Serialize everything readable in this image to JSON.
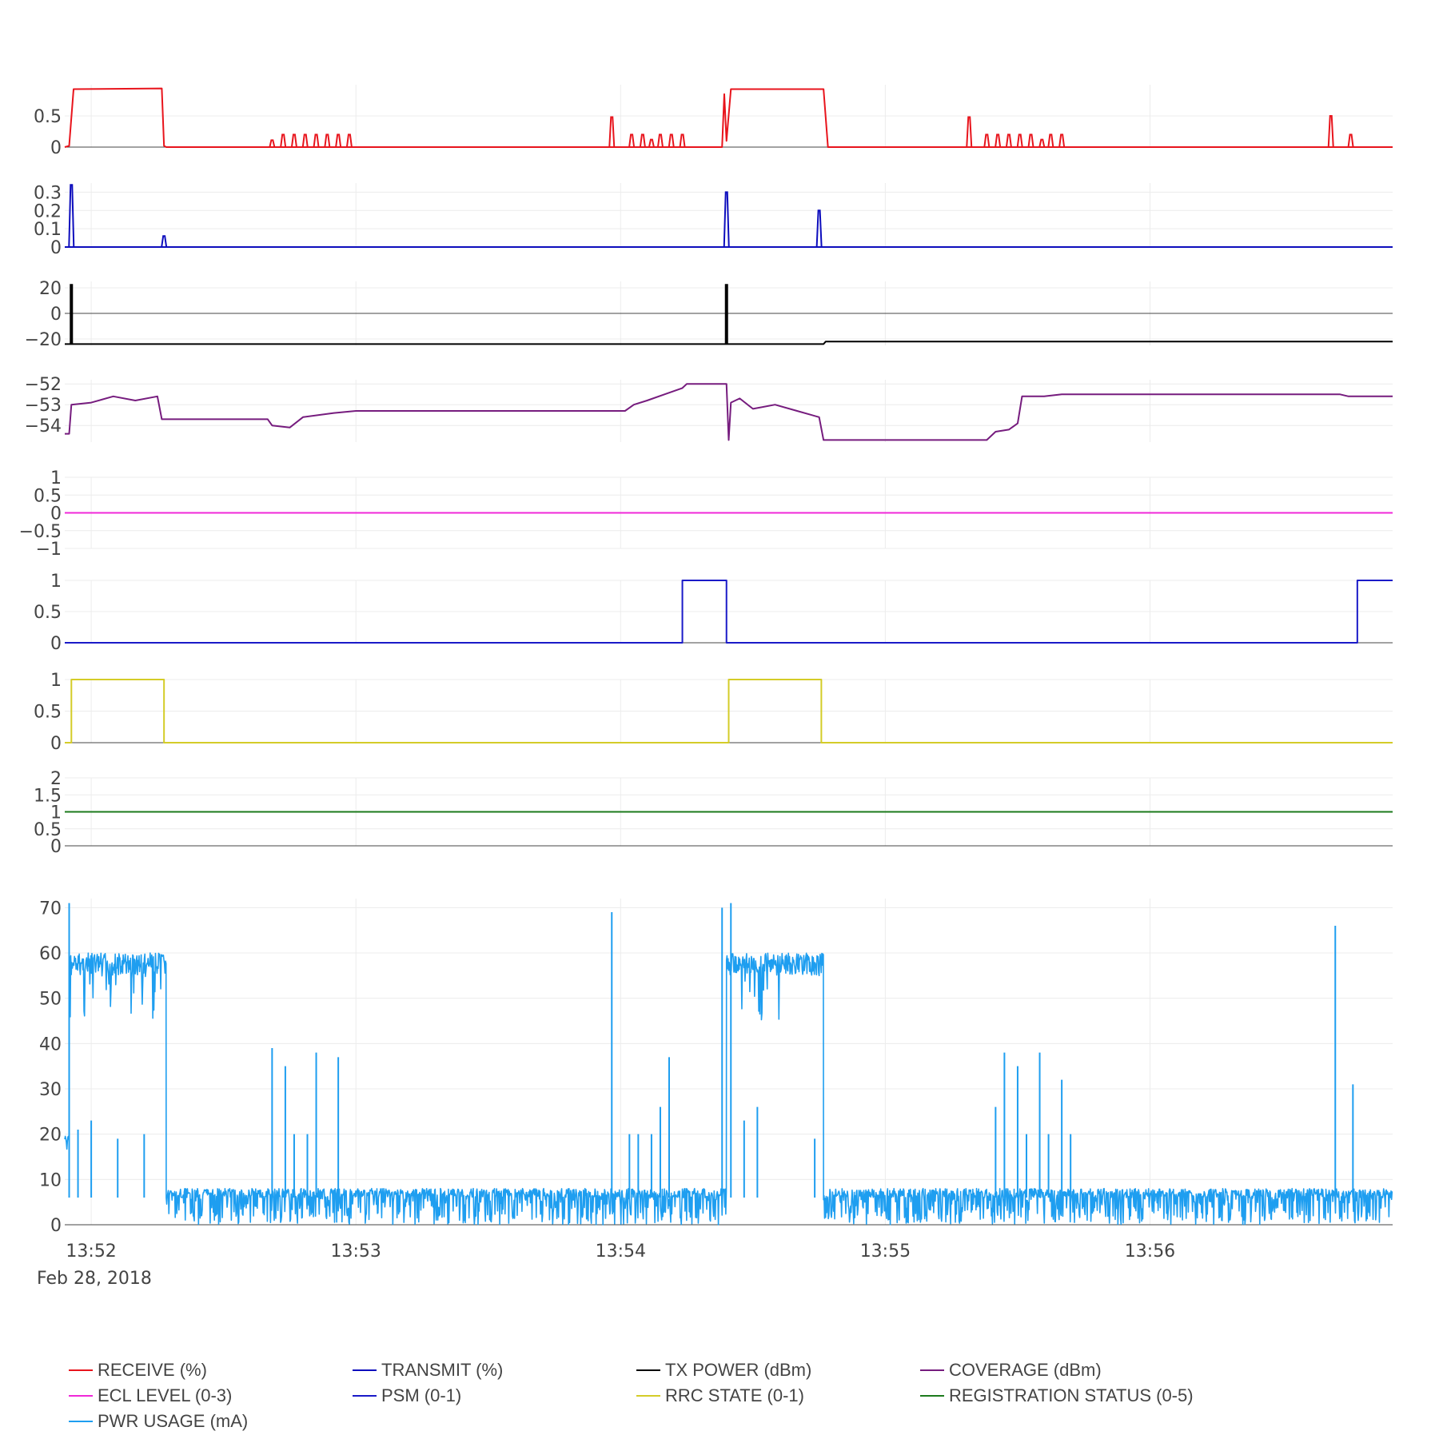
{
  "chart_data": {
    "type": "line",
    "title": "",
    "x_axis": {
      "type": "time",
      "range": [
        "2018-02-28 13:51:54",
        "2018-02-28 13:56:55"
      ],
      "tick_labels": [
        "13:52",
        "13:53",
        "13:54",
        "13:55",
        "13:56"
      ],
      "date_label": "Feb 28, 2018"
    },
    "grid": true,
    "legend_position": "bottom",
    "subplots": [
      {
        "name": "RECEIVE (%)",
        "color": "#e8141c",
        "ylim": [
          0,
          1
        ],
        "yticks": [
          "0",
          "0.5"
        ],
        "points": [
          [
            "13:51:54",
            0
          ],
          [
            "13:51:55",
            0.02
          ],
          [
            "13:51:56",
            0.93
          ],
          [
            "13:52:16",
            0.94
          ],
          [
            "13:52:16.5",
            0.02
          ],
          [
            "13:52:17",
            0
          ],
          [
            "13:54:23",
            0
          ],
          [
            "13:54:23.5",
            0.85
          ],
          [
            "13:54:24",
            0.1
          ],
          [
            "13:54:25",
            0.93
          ],
          [
            "13:54:46",
            0.93
          ],
          [
            "13:54:47",
            0
          ],
          [
            "13:56:55",
            0
          ]
        ],
        "spikes": [
          [
            "13:52:41",
            0.11
          ],
          [
            "13:52:43.5",
            0.2
          ],
          [
            "13:52:46",
            0.2
          ],
          [
            "13:52:48.5",
            0.2
          ],
          [
            "13:52:51",
            0.2
          ],
          [
            "13:52:53.5",
            0.2
          ],
          [
            "13:52:56",
            0.2
          ],
          [
            "13:52:58.5",
            0.2
          ],
          [
            "13:53:58",
            0.48
          ],
          [
            "13:54:02.5",
            0.2
          ],
          [
            "13:54:05",
            0.2
          ],
          [
            "13:54:07",
            0.12
          ],
          [
            "13:54:09",
            0.2
          ],
          [
            "13:54:11.5",
            0.2
          ],
          [
            "13:54:14",
            0.2
          ],
          [
            "13:55:19",
            0.48
          ],
          [
            "13:55:23",
            0.2
          ],
          [
            "13:55:25.5",
            0.2
          ],
          [
            "13:55:28",
            0.2
          ],
          [
            "13:55:30.5",
            0.2
          ],
          [
            "13:55:33",
            0.2
          ],
          [
            "13:55:35.5",
            0.12
          ],
          [
            "13:55:37.5",
            0.2
          ],
          [
            "13:55:40",
            0.2
          ],
          [
            "13:56:41",
            0.5
          ],
          [
            "13:56:45.5",
            0.2
          ]
        ]
      },
      {
        "name": "TRANSMIT (%)",
        "color": "#0d0dbd",
        "ylim": [
          0,
          0.35
        ],
        "yticks": [
          "0",
          "0.1",
          "0.2",
          "0.3"
        ],
        "points": [
          [
            "13:51:54",
            0
          ],
          [
            "13:56:55",
            0
          ]
        ],
        "spikes": [
          [
            "13:51:55.5",
            0.34
          ],
          [
            "13:52:16.5",
            0.06
          ],
          [
            "13:54:24",
            0.3
          ],
          [
            "13:54:45",
            0.2
          ]
        ]
      },
      {
        "name": "TX POWER (dBm)",
        "color": "#000000",
        "ylim": [
          -25,
          25
        ],
        "yticks": [
          "−20",
          "0",
          "20"
        ],
        "points": [
          [
            "13:51:54",
            -24
          ],
          [
            "13:54:46",
            -24
          ],
          [
            "13:54:46.5",
            -22
          ],
          [
            "13:56:55",
            -22
          ]
        ],
        "bars": [
          [
            "13:51:55.5",
            23
          ],
          [
            "13:54:24",
            23
          ]
        ]
      },
      {
        "name": "COVERAGE (dBm)",
        "color": "#761c7e",
        "ylim": [
          -54.8,
          -51.8
        ],
        "yticks": [
          "−54",
          "−53",
          "−52"
        ],
        "points": [
          [
            "13:51:54",
            -54.4
          ],
          [
            "13:51:55",
            -54.4
          ],
          [
            "13:51:55.5",
            -53
          ],
          [
            "13:52:00",
            -52.9
          ],
          [
            "13:52:05",
            -52.6
          ],
          [
            "13:52:10",
            -52.8
          ],
          [
            "13:52:15",
            -52.6
          ],
          [
            "13:52:16",
            -53.7
          ],
          [
            "13:52:40",
            -53.7
          ],
          [
            "13:52:41",
            -54
          ],
          [
            "13:52:45",
            -54.1
          ],
          [
            "13:52:48",
            -53.6
          ],
          [
            "13:52:55",
            -53.4
          ],
          [
            "13:53:00",
            -53.3
          ],
          [
            "13:54:01",
            -53.3
          ],
          [
            "13:54:03",
            -53
          ],
          [
            "13:54:06",
            -52.8
          ],
          [
            "13:54:10",
            -52.5
          ],
          [
            "13:54:14",
            -52.2
          ],
          [
            "13:54:15",
            -52
          ],
          [
            "13:54:24",
            -52
          ],
          [
            "13:54:24.5",
            -54.7
          ],
          [
            "13:54:25",
            -52.9
          ],
          [
            "13:54:27",
            -52.7
          ],
          [
            "13:54:30",
            -53.2
          ],
          [
            "13:54:35",
            -53
          ],
          [
            "13:54:40",
            -53.3
          ],
          [
            "13:54:45",
            -53.6
          ],
          [
            "13:54:46",
            -54.7
          ],
          [
            "13:55:23",
            -54.7
          ],
          [
            "13:55:25",
            -54.3
          ],
          [
            "13:55:28",
            -54.2
          ],
          [
            "13:55:30",
            -53.9
          ],
          [
            "13:55:31",
            -52.6
          ],
          [
            "13:55:36",
            -52.6
          ],
          [
            "13:55:40",
            -52.5
          ],
          [
            "13:56:43",
            -52.5
          ],
          [
            "13:56:45",
            -52.6
          ],
          [
            "13:56:55",
            -52.6
          ]
        ]
      },
      {
        "name": "ECL LEVEL (0-3)",
        "color": "#f028d8",
        "ylim": [
          -1,
          1
        ],
        "yticks": [
          "−1",
          "−0.5",
          "0",
          "0.5",
          "1"
        ],
        "points": [
          [
            "13:51:54",
            0
          ],
          [
            "13:56:55",
            0
          ]
        ]
      },
      {
        "name": "PSM (0-1)",
        "color": "#1a1ac8",
        "ylim": [
          0,
          1
        ],
        "yticks": [
          "0",
          "0.5",
          "1"
        ],
        "points": [
          [
            "13:51:54",
            0
          ],
          [
            "13:54:14",
            0
          ],
          [
            "13:54:14",
            1
          ],
          [
            "13:54:24",
            1
          ],
          [
            "13:54:24",
            0
          ],
          [
            "13:56:47",
            0
          ],
          [
            "13:56:47",
            1
          ],
          [
            "13:56:55",
            1
          ]
        ]
      },
      {
        "name": "RRC STATE (0-1)",
        "color": "#d4cc28",
        "ylim": [
          0,
          1
        ],
        "yticks": [
          "0",
          "0.5",
          "1"
        ],
        "points": [
          [
            "13:51:54",
            0
          ],
          [
            "13:51:55.5",
            0
          ],
          [
            "13:51:55.5",
            1
          ],
          [
            "13:52:16.5",
            1
          ],
          [
            "13:52:16.5",
            0
          ],
          [
            "13:54:24.5",
            0
          ],
          [
            "13:54:24.5",
            1
          ],
          [
            "13:54:45.5",
            1
          ],
          [
            "13:54:45.5",
            0
          ],
          [
            "13:56:55",
            0
          ]
        ]
      },
      {
        "name": "REGISTRATION STATUS (0-5)",
        "color": "#1c7a1c",
        "ylim": [
          0,
          2
        ],
        "yticks": [
          "0",
          "0.5",
          "1",
          "1.5",
          "2"
        ],
        "points": [
          [
            "13:51:54",
            1
          ],
          [
            "13:56:55",
            1
          ]
        ]
      },
      {
        "name": "PWR USAGE (mA)",
        "color": "#1e9ef0",
        "ylim": [
          0,
          72
        ],
        "yticks": [
          "0",
          "10",
          "20",
          "30",
          "40",
          "50",
          "60",
          "70"
        ],
        "segments": [
          {
            "from": "13:51:54",
            "to": "13:51:55",
            "low": 0,
            "high": 20
          },
          {
            "from": "13:51:55",
            "to": "13:52:17",
            "low": 45,
            "high": 60
          },
          {
            "from": "13:52:17",
            "to": "13:54:24",
            "low": 0,
            "high": 8
          },
          {
            "from": "13:54:24",
            "to": "13:54:46",
            "low": 45,
            "high": 60
          },
          {
            "from": "13:54:46",
            "to": "13:56:55",
            "low": 0,
            "high": 8
          }
        ],
        "spikes": [
          [
            "13:51:55",
            71
          ],
          [
            "13:51:57",
            21
          ],
          [
            "13:52:00",
            23
          ],
          [
            "13:52:06",
            19
          ],
          [
            "13:52:12",
            20
          ],
          [
            "13:52:41",
            39
          ],
          [
            "13:52:44",
            35
          ],
          [
            "13:52:46",
            20
          ],
          [
            "13:52:49",
            20
          ],
          [
            "13:52:51",
            38
          ],
          [
            "13:52:56",
            37
          ],
          [
            "13:53:58",
            69
          ],
          [
            "13:54:02",
            20
          ],
          [
            "13:54:04",
            20
          ],
          [
            "13:54:07",
            20
          ],
          [
            "13:54:09",
            26
          ],
          [
            "13:54:11",
            37
          ],
          [
            "13:54:23",
            70
          ],
          [
            "13:54:25",
            71
          ],
          [
            "13:54:28",
            23
          ],
          [
            "13:54:31",
            26
          ],
          [
            "13:54:44",
            19
          ],
          [
            "13:55:25",
            26
          ],
          [
            "13:55:27",
            38
          ],
          [
            "13:55:30",
            35
          ],
          [
            "13:55:32",
            20
          ],
          [
            "13:55:35",
            38
          ],
          [
            "13:55:37",
            20
          ],
          [
            "13:55:40",
            32
          ],
          [
            "13:55:42",
            20
          ],
          [
            "13:56:42",
            66
          ],
          [
            "13:56:46",
            31
          ]
        ]
      }
    ]
  },
  "legend": [
    {
      "label": "RECEIVE (%)",
      "color": "#e8141c"
    },
    {
      "label": "TRANSMIT (%)",
      "color": "#0d0dbd"
    },
    {
      "label": "TX POWER (dBm)",
      "color": "#000000"
    },
    {
      "label": "COVERAGE (dBm)",
      "color": "#761c7e"
    },
    {
      "label": "ECL LEVEL (0-3)",
      "color": "#f028d8"
    },
    {
      "label": "PSM (0-1)",
      "color": "#1a1ac8"
    },
    {
      "label": "RRC STATE (0-1)",
      "color": "#d4cc28"
    },
    {
      "label": "REGISTRATION STATUS (0-5)",
      "color": "#1c7a1c"
    },
    {
      "label": "PWR USAGE (mA)",
      "color": "#1e9ef0"
    }
  ]
}
